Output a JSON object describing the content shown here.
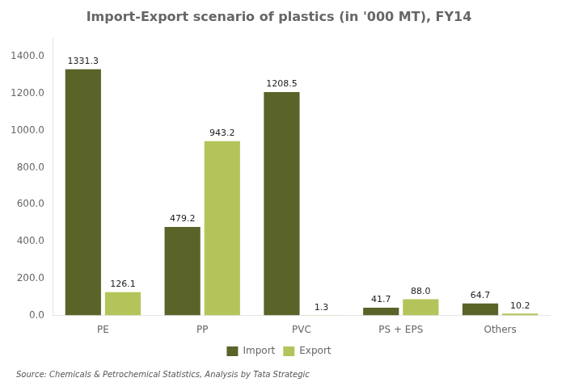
{
  "chart_data": {
    "type": "bar",
    "title": "Import-Export scenario of plastics (in '000 MT), FY14",
    "categories": [
      "PE",
      "PP",
      "PVC",
      "PS + EPS",
      "Others"
    ],
    "series": [
      {
        "name": "Import",
        "color": "#5a6328",
        "values": [
          1331.3,
          479.2,
          1208.5,
          41.7,
          64.7
        ],
        "value_labels": [
          "1331.3",
          "479.2",
          "1208.5",
          "41.7",
          "64.7"
        ]
      },
      {
        "name": "Export",
        "color": "#b5c45a",
        "values": [
          126.1,
          943.2,
          1.3,
          88.0,
          10.2
        ],
        "value_labels": [
          "126.1",
          "943.2",
          "1.3",
          "88.0",
          "10.2"
        ]
      }
    ],
    "ylim": [
      0,
      1500
    ],
    "yticks": [
      {
        "value": 0,
        "label": "0.0"
      },
      {
        "value": 200,
        "label": "200.0"
      },
      {
        "value": 400,
        "label": "400.0"
      },
      {
        "value": 600,
        "label": "600.0"
      },
      {
        "value": 800,
        "label": "800.0"
      },
      {
        "value": 1000,
        "label": "1000.0"
      },
      {
        "value": 1200,
        "label": "1200.0"
      },
      {
        "value": 1400,
        "label": "1400.0"
      }
    ],
    "grid": false,
    "legend": "bottom",
    "data_labels": true,
    "annotations": [
      "Source: Chemicals & Petrochemical Statistics, Analysis by Tata Strategic"
    ]
  }
}
